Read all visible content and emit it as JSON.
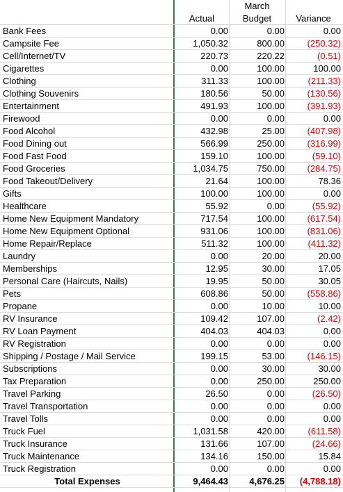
{
  "header": {
    "month": "March",
    "actual_label": "Actual",
    "budget_label": "Budget",
    "variance_label": "Variance"
  },
  "rows": [
    {
      "category": "Bank Fees",
      "actual": "0.00",
      "budget": "0.00",
      "variance": "0.00"
    },
    {
      "category": "Campsite Fee",
      "actual": "1,050.32",
      "budget": "800.00",
      "variance": "(250.32)"
    },
    {
      "category": "Cell/Internet/TV",
      "actual": "220.73",
      "budget": "220.22",
      "variance": "(0.51)"
    },
    {
      "category": "Cigarettes",
      "actual": "0.00",
      "budget": "100.00",
      "variance": "100.00"
    },
    {
      "category": "Clothing",
      "actual": "311.33",
      "budget": "100.00",
      "variance": "(211.33)"
    },
    {
      "category": "Clothing Souvenirs",
      "actual": "180.56",
      "budget": "50.00",
      "variance": "(130.56)"
    },
    {
      "category": "Entertainment",
      "actual": "491.93",
      "budget": "100.00",
      "variance": "(391.93)"
    },
    {
      "category": "Firewood",
      "actual": "0.00",
      "budget": "0.00",
      "variance": "0.00"
    },
    {
      "category": "Food Alcohol",
      "actual": "432.98",
      "budget": "25.00",
      "variance": "(407.98)"
    },
    {
      "category": "Food Dining out",
      "actual": "566.99",
      "budget": "250.00",
      "variance": "(316.99)"
    },
    {
      "category": "Food Fast Food",
      "actual": "159.10",
      "budget": "100.00",
      "variance": "(59.10)"
    },
    {
      "category": "Food Groceries",
      "actual": "1,034.75",
      "budget": "750.00",
      "variance": "(284.75)"
    },
    {
      "category": "Food Takeout/Delivery",
      "actual": "21.64",
      "budget": "100.00",
      "variance": "78.36"
    },
    {
      "category": "Gifts",
      "actual": "100.00",
      "budget": "100.00",
      "variance": "0.00"
    },
    {
      "category": "Healthcare",
      "actual": "55.92",
      "budget": "0.00",
      "variance": "(55.92)"
    },
    {
      "category": "Home New Equipment Mandatory",
      "actual": "717.54",
      "budget": "100.00",
      "variance": "(617.54)"
    },
    {
      "category": "Home New Equipment Optional",
      "actual": "931.06",
      "budget": "100.00",
      "variance": "(831.06)"
    },
    {
      "category": "Home Repair/Replace",
      "actual": "511.32",
      "budget": "100.00",
      "variance": "(411.32)"
    },
    {
      "category": "Laundry",
      "actual": "0.00",
      "budget": "20.00",
      "variance": "20.00"
    },
    {
      "category": "Memberships",
      "actual": "12.95",
      "budget": "30.00",
      "variance": "17.05"
    },
    {
      "category": "Personal Care (Haircuts, Nails)",
      "actual": "19.95",
      "budget": "50.00",
      "variance": "30.05"
    },
    {
      "category": "Pets",
      "actual": "608.86",
      "budget": "50.00",
      "variance": "(558.86)"
    },
    {
      "category": "Propane",
      "actual": "0.00",
      "budget": "10.00",
      "variance": "10.00"
    },
    {
      "category": "RV Insurance",
      "actual": "109.42",
      "budget": "107.00",
      "variance": "(2.42)"
    },
    {
      "category": "RV Loan Payment",
      "actual": "404.03",
      "budget": "404.03",
      "variance": "0.00"
    },
    {
      "category": "RV Registration",
      "actual": "0.00",
      "budget": "0.00",
      "variance": "0.00"
    },
    {
      "category": "Shipping / Postage / Mail Service",
      "actual": "199.15",
      "budget": "53.00",
      "variance": "(146.15)"
    },
    {
      "category": "Subscriptions",
      "actual": "0.00",
      "budget": "30.00",
      "variance": "30.00"
    },
    {
      "category": "Tax Preparation",
      "actual": "0.00",
      "budget": "250.00",
      "variance": "250.00"
    },
    {
      "category": "Travel Parking",
      "actual": "26.50",
      "budget": "0.00",
      "variance": "(26.50)"
    },
    {
      "category": "Travel Transportation",
      "actual": "0.00",
      "budget": "0.00",
      "variance": "0.00"
    },
    {
      "category": "Travel Tolls",
      "actual": "0.00",
      "budget": "0.00",
      "variance": "0.00"
    },
    {
      "category": "Truck Fuel",
      "actual": "1,031.58",
      "budget": "420.00",
      "variance": "(611.58)"
    },
    {
      "category": "Truck Insurance",
      "actual": "131.66",
      "budget": "107.00",
      "variance": "(24.66)"
    },
    {
      "category": "Truck Maintenance",
      "actual": "134.16",
      "budget": "150.00",
      "variance": "15.84"
    },
    {
      "category": "Truck Registration",
      "actual": "0.00",
      "budget": "0.00",
      "variance": "0.00"
    }
  ],
  "total": {
    "category": "Total Expenses",
    "actual": "9,464.43",
    "budget": "4,676.25",
    "variance": "(4,788.18)"
  },
  "colors": {
    "negative": "#e00000",
    "freeze_line": "#3a7d44",
    "gridline": "#d9d9d9"
  }
}
